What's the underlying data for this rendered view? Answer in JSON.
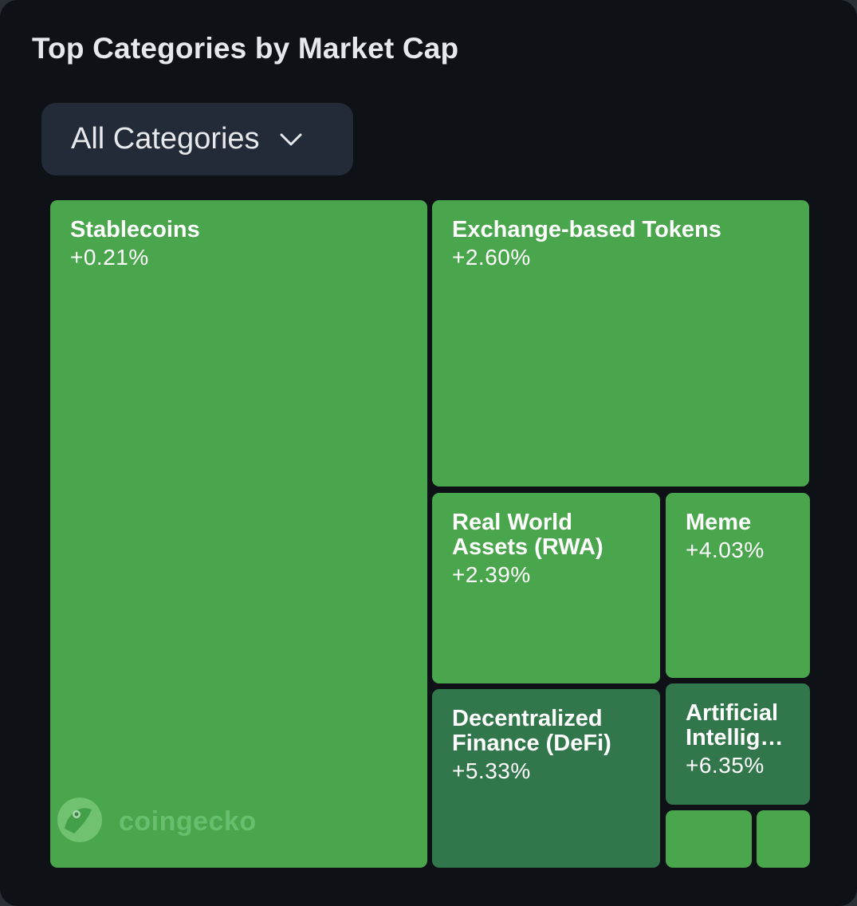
{
  "widget": {
    "title": "Top Categories by Market Cap"
  },
  "filter": {
    "selected": "All Categories",
    "icon": "chevron-down-icon"
  },
  "colors": {
    "card_background": "#0e1116",
    "dropdown_background": "#232b38",
    "gain_light": "#4aa64d",
    "gain_dark": "#32774b",
    "text": "#e6e8ec"
  },
  "tiles": [
    {
      "name": "Stablecoins",
      "change": "+0.21%"
    },
    {
      "name": "Exchange-based Tokens",
      "change": "+2.60%"
    },
    {
      "name": "Real World Assets (RWA)",
      "change": "+2.39%"
    },
    {
      "name": "Meme",
      "change": "+4.03%"
    },
    {
      "name": "Decentralized Finance (DeFi)",
      "change": "+5.33%"
    },
    {
      "name": "Artificial Intellig…",
      "change": "+6.35%"
    }
  ],
  "watermark": {
    "brand": "coingecko",
    "icon": "coingecko-logo-icon"
  }
}
